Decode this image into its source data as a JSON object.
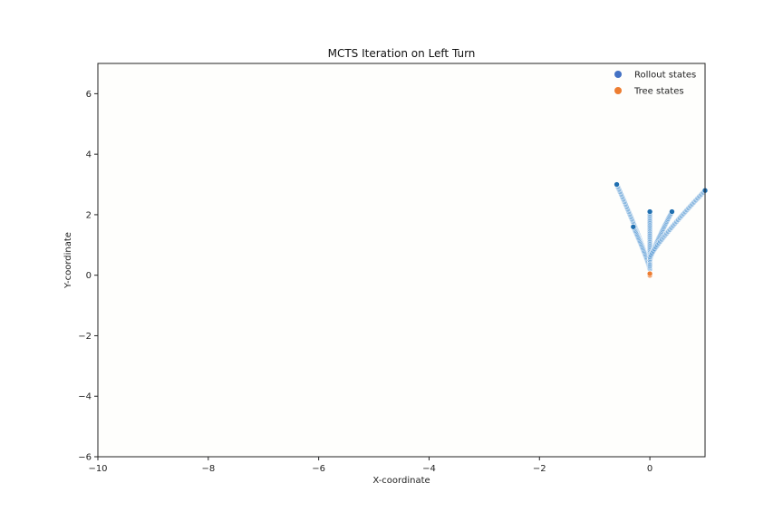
{
  "chart_data": {
    "type": "scatter",
    "title": "MCTS Iteration on Left Turn",
    "xlabel": "X-coordinate",
    "ylabel": "Y-coordinate",
    "xlim": [
      -10,
      1
    ],
    "ylim": [
      -6,
      7
    ],
    "xticks": [
      -10,
      -8,
      -6,
      -4,
      -2,
      0
    ],
    "yticks": [
      -6,
      -4,
      -2,
      0,
      2,
      4,
      6
    ],
    "xtick_labels": [
      "−10",
      "−8",
      "−6",
      "−4",
      "−2",
      "0"
    ],
    "ytick_labels": [
      "−6",
      "−4",
      "−2",
      "0",
      "2",
      "4",
      "6"
    ],
    "grid": false,
    "legend_position": "top-right",
    "background_color": "#fefefc",
    "series": [
      {
        "name": "Rollout states",
        "color": "#4472c4",
        "point_color": "#5b9bd5",
        "endpoint_color": "#1f6fb0",
        "branches": [
          {
            "start": [
              0.0,
              0.2
            ],
            "end": [
              -0.6,
              3.0
            ]
          },
          {
            "start": [
              0.0,
              0.2
            ],
            "end": [
              -0.3,
              1.6
            ]
          },
          {
            "start": [
              0.0,
              0.3
            ],
            "end": [
              0.0,
              2.1
            ]
          },
          {
            "start": [
              0.0,
              0.5
            ],
            "end": [
              0.4,
              2.1
            ]
          },
          {
            "start": [
              0.0,
              0.6
            ],
            "end": [
              1.0,
              2.8
            ]
          }
        ]
      },
      {
        "name": "Tree states",
        "color": "#ed7d31",
        "points": [
          [
            0.0,
            0.0
          ],
          [
            0.0,
            0.05
          ]
        ]
      }
    ]
  }
}
